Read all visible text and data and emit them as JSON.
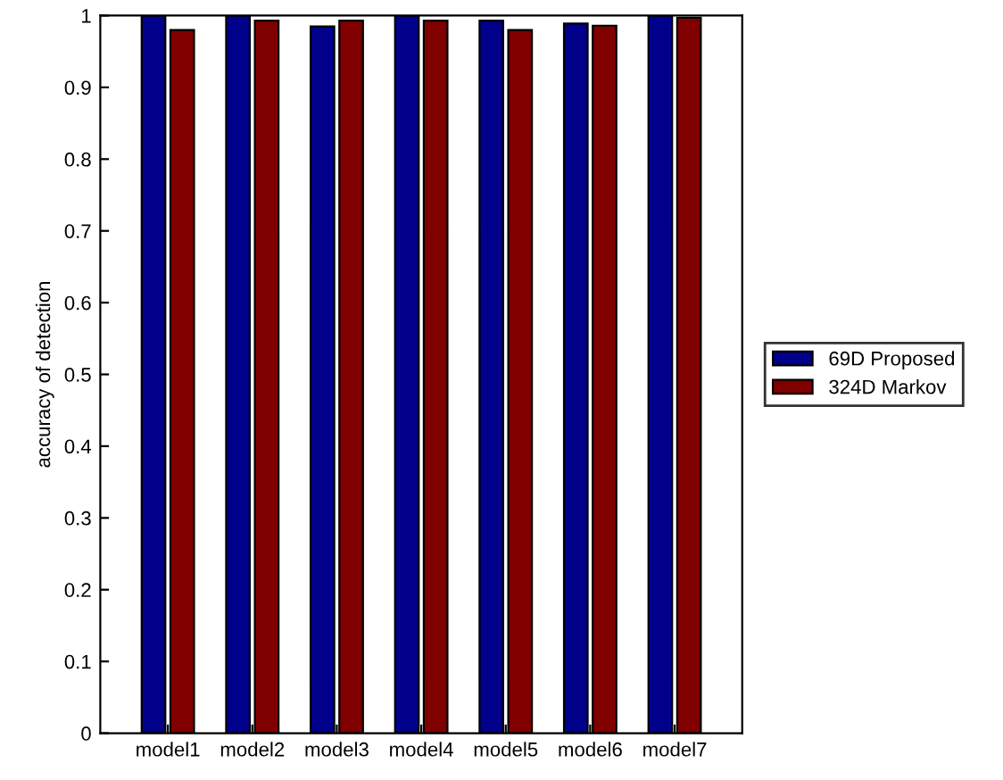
{
  "chart_data": {
    "type": "bar",
    "ylabel": "accuracy of detection",
    "categories": [
      "model1",
      "model2",
      "model3",
      "model4",
      "model5",
      "model6",
      "model7"
    ],
    "series": [
      {
        "name": "69D Proposed",
        "color": "#00008b",
        "values": [
          1.0,
          1.0,
          0.985,
          1.0,
          0.993,
          0.989,
          1.0
        ]
      },
      {
        "name": "324D Markov",
        "color": "#800000",
        "values": [
          0.98,
          0.993,
          0.993,
          0.993,
          0.98,
          0.986,
          0.997
        ]
      }
    ],
    "ylim": [
      0,
      1
    ],
    "yticks": [
      0,
      0.1,
      0.2,
      0.3,
      0.4,
      0.5,
      0.6,
      0.7,
      0.8,
      0.9,
      1
    ],
    "grid": false,
    "legend": "right"
  }
}
